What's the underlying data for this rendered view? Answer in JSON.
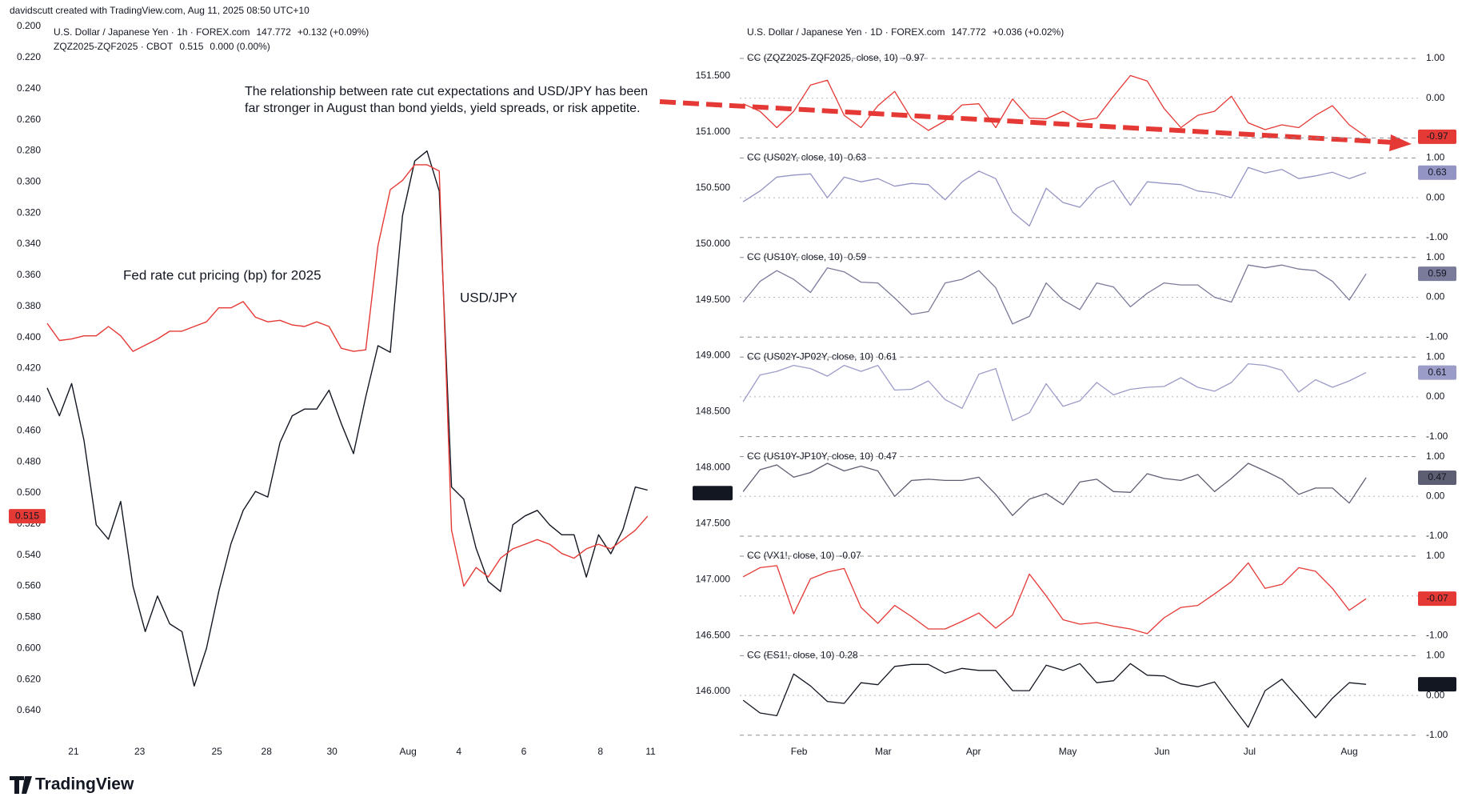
{
  "credit": "davidscutt created with TradingView.com, Aug 11, 2025 08:50 UTC+10",
  "logo": "TradingView",
  "chart_data": [
    {
      "type": "line",
      "header": {
        "symbol": "U.S. Dollar / Japanese Yen · 1h · FOREX.com",
        "change": "+0.132 (+0.09%)",
        "symbol2": "ZQZ2025-ZQF2025 · CBOT",
        "change2": "0.000 (0.00%)"
      },
      "annotation": [
        "The relationship between rate cut expectations and USD/JPY has been",
        "far stronger in August than bond yields, yield spreads, or risk appetite."
      ],
      "xlim": [
        0,
        100
      ],
      "xticks": [
        {
          "value": 4.3,
          "label": "21"
        },
        {
          "value": 15.1,
          "label": "23"
        },
        {
          "value": 27.7,
          "label": "25"
        },
        {
          "value": 35.8,
          "label": "28"
        },
        {
          "value": 46.5,
          "label": "30"
        },
        {
          "value": 58.9,
          "label": "Aug"
        },
        {
          "value": 67.2,
          "label": "4"
        },
        {
          "value": 77.8,
          "label": "6"
        },
        {
          "value": 90.3,
          "label": "8"
        },
        {
          "value": 98.5,
          "label": "11"
        }
      ],
      "ylim": [
        0.64,
        0.2
      ],
      "yticks": [
        {
          "value": 0.2,
          "label": "0.200"
        },
        {
          "value": 0.22,
          "label": "0.220"
        },
        {
          "value": 0.24,
          "label": "0.240"
        },
        {
          "value": 0.26,
          "label": "0.260"
        },
        {
          "value": 0.28,
          "label": "0.280"
        },
        {
          "value": 0.3,
          "label": "0.300"
        },
        {
          "value": 0.32,
          "label": "0.320"
        },
        {
          "value": 0.34,
          "label": "0.340"
        },
        {
          "value": 0.36,
          "label": "0.360"
        },
        {
          "value": 0.38,
          "label": "0.380"
        },
        {
          "value": 0.4,
          "label": "0.400"
        },
        {
          "value": 0.42,
          "label": "0.420"
        },
        {
          "value": 0.44,
          "label": "0.440"
        },
        {
          "value": 0.46,
          "label": "0.460"
        },
        {
          "value": 0.48,
          "label": "0.480"
        },
        {
          "value": 0.5,
          "label": "0.500"
        },
        {
          "value": 0.52,
          "label": "0.520"
        },
        {
          "value": 0.54,
          "label": "0.540"
        },
        {
          "value": 0.56,
          "label": "0.560"
        },
        {
          "value": 0.58,
          "label": "0.580"
        },
        {
          "value": 0.6,
          "label": "0.600"
        },
        {
          "value": 0.62,
          "label": "0.620"
        },
        {
          "value": 0.64,
          "label": "0.640"
        }
      ],
      "y2lim": [
        145.79,
        151.94
      ],
      "x": [
        0,
        2,
        4,
        6,
        8,
        10,
        12,
        14,
        16,
        18,
        20,
        22,
        24,
        26,
        28,
        30,
        32,
        34,
        36,
        38,
        40,
        42,
        44,
        46,
        48,
        50,
        52,
        54,
        56,
        58,
        60,
        62,
        64,
        66,
        68,
        70,
        72,
        74,
        76,
        78,
        80,
        82,
        84,
        86,
        88,
        90,
        92,
        94,
        96,
        98
      ],
      "series": [
        {
          "name": "USD/JPY",
          "color": "#131722",
          "axis": "y2",
          "values": [
            148.69,
            148.44,
            148.73,
            148.22,
            147.46,
            147.33,
            147.67,
            146.91,
            146.5,
            146.82,
            146.57,
            146.5,
            146.01,
            146.35,
            146.86,
            147.29,
            147.59,
            147.76,
            147.71,
            148.2,
            148.44,
            148.5,
            148.5,
            148.67,
            148.37,
            148.1,
            148.61,
            149.07,
            149.01,
            150.24,
            150.73,
            150.82,
            150.46,
            147.8,
            147.69,
            147.25,
            146.95,
            146.86,
            147.46,
            147.54,
            147.59,
            147.46,
            147.37,
            147.37,
            146.99,
            147.37,
            147.2,
            147.42,
            147.8,
            147.772
          ]
        },
        {
          "name": "Fed rate cut pricing (bp) for 2025",
          "color": "#e53935",
          "values": [
            0.391,
            0.402,
            0.401,
            0.399,
            0.399,
            0.393,
            0.399,
            0.409,
            0.405,
            0.401,
            0.396,
            0.396,
            0.393,
            0.39,
            0.381,
            0.381,
            0.377,
            0.387,
            0.39,
            0.389,
            0.392,
            0.393,
            0.39,
            0.393,
            0.407,
            0.409,
            0.408,
            0.341,
            0.305,
            0.299,
            0.289,
            0.289,
            0.293,
            0.524,
            0.56,
            0.548,
            0.554,
            0.542,
            0.536,
            0.533,
            0.53,
            0.533,
            0.539,
            0.542,
            0.536,
            0.533,
            0.536,
            0.53,
            0.524,
            0.515
          ]
        }
      ]
    },
    {
      "type": "line",
      "header": {
        "symbol": "U.S. Dollar / Japanese Yen · 1D · FOREX.com",
        "change": "+0.036 (+0.02%)"
      },
      "ylim": [
        146,
        151.5
      ],
      "yticks": [
        {
          "value": 146,
          "label": "146.000"
        },
        {
          "value": 146.5,
          "label": "146.500"
        },
        {
          "value": 147,
          "label": "147.000"
        },
        {
          "value": 147.5,
          "label": "147.500"
        },
        {
          "value": 148,
          "label": "148.000"
        },
        {
          "value": 148.5,
          "label": "148.500"
        },
        {
          "value": 149,
          "label": "149.000"
        },
        {
          "value": 149.5,
          "label": "149.500"
        },
        {
          "value": 150,
          "label": "150.000"
        },
        {
          "value": 150.5,
          "label": "150.500"
        },
        {
          "value": 151,
          "label": "151.000"
        },
        {
          "value": 151.5,
          "label": "151.500"
        }
      ],
      "xlim": [
        0,
        100
      ],
      "xticks": [
        {
          "value": 8.8,
          "label": "Feb"
        },
        {
          "value": 21.3,
          "label": "Mar"
        },
        {
          "value": 34.7,
          "label": "Apr"
        },
        {
          "value": 48.7,
          "label": "May"
        },
        {
          "value": 62.7,
          "label": "Jun"
        },
        {
          "value": 75.7,
          "label": "Jul"
        },
        {
          "value": 90.5,
          "label": "Aug"
        }
      ],
      "pane_ylim": [
        -1,
        1
      ],
      "pane_yticks": [
        {
          "value": 1,
          "label": "1.00"
        },
        {
          "value": 0,
          "label": "0.00"
        },
        {
          "value": -1,
          "label": "-1.00"
        }
      ],
      "x": [
        0.5,
        3,
        5.5,
        8,
        10.5,
        13,
        15.5,
        18,
        20.5,
        23,
        25.5,
        28,
        30.5,
        33,
        35.5,
        38,
        40.5,
        43,
        45.5,
        48,
        50.5,
        53,
        55.5,
        58,
        60.5,
        63,
        65.5,
        68,
        70.5,
        73,
        75.5,
        78,
        80.5,
        83,
        85.5,
        88,
        90.5,
        93
      ],
      "series": [
        {
          "name": "CC (ZQZ2025-ZQF2025, close, 10)",
          "color": "#e53935",
          "values": [
            -0.14,
            -0.33,
            -0.74,
            -0.33,
            0.33,
            0.45,
            -0.43,
            -0.74,
            -0.19,
            0.17,
            -0.52,
            -0.81,
            -0.57,
            -0.17,
            -0.14,
            -0.74,
            -0.02,
            -0.5,
            -0.52,
            -0.33,
            -0.57,
            -0.5,
            0.05,
            0.57,
            0.43,
            -0.26,
            -0.74,
            -0.43,
            -0.33,
            0.05,
            -0.62,
            -0.79,
            -0.67,
            -0.74,
            -0.43,
            -0.19,
            -0.67,
            -0.97
          ]
        },
        {
          "name": "CC (US02Y, close, 10)",
          "color": "#9494c4",
          "values": [
            -0.1,
            0.17,
            0.52,
            0.57,
            0.6,
            0.0,
            0.52,
            0.4,
            0.48,
            0.29,
            0.36,
            0.33,
            -0.05,
            0.4,
            0.67,
            0.48,
            -0.36,
            -0.71,
            0.24,
            -0.12,
            -0.24,
            0.24,
            0.43,
            -0.19,
            0.4,
            0.36,
            0.33,
            0.17,
            0.12,
            0.0,
            0.76,
            0.62,
            0.71,
            0.48,
            0.55,
            0.64,
            0.48,
            0.63
          ]
        },
        {
          "name": "CC (US10Y, close, 10)",
          "color": "#7a7a9a",
          "values": [
            -0.12,
            0.4,
            0.67,
            0.45,
            0.12,
            0.74,
            0.64,
            0.38,
            0.36,
            -0.02,
            -0.43,
            -0.36,
            0.36,
            0.45,
            0.67,
            0.24,
            -0.67,
            -0.48,
            0.36,
            -0.07,
            -0.31,
            0.36,
            0.26,
            -0.24,
            0.1,
            0.36,
            0.31,
            0.31,
            0.0,
            -0.12,
            0.81,
            0.74,
            0.81,
            0.71,
            0.67,
            0.4,
            -0.07,
            0.59
          ]
        },
        {
          "name": "CC (US02Y-JP02Y, close, 10)",
          "color": "#9c9cc8",
          "values": [
            -0.12,
            0.55,
            0.64,
            0.79,
            0.71,
            0.52,
            0.79,
            0.64,
            0.79,
            0.17,
            0.19,
            0.4,
            -0.07,
            -0.29,
            0.57,
            0.71,
            -0.6,
            -0.4,
            0.33,
            -0.24,
            -0.1,
            0.36,
            0.05,
            0.19,
            0.24,
            0.26,
            0.48,
            0.24,
            0.14,
            0.36,
            0.83,
            0.79,
            0.67,
            0.12,
            0.43,
            0.24,
            0.4,
            0.61
          ]
        },
        {
          "name": "CC (US10Y-JP10Y, close, 10)",
          "color": "#5e5e72",
          "values": [
            0.12,
            0.67,
            0.79,
            0.48,
            0.6,
            0.83,
            0.64,
            0.76,
            0.64,
            0.0,
            0.4,
            0.43,
            0.4,
            0.4,
            0.48,
            0.05,
            -0.48,
            -0.07,
            0.07,
            -0.21,
            0.36,
            0.43,
            0.12,
            0.1,
            0.57,
            0.45,
            0.4,
            0.55,
            0.12,
            0.45,
            0.83,
            0.64,
            0.43,
            0.05,
            0.21,
            0.21,
            -0.17,
            0.47
          ]
        },
        {
          "name": "CC (VX1!, close, 10)",
          "color": "#e53935",
          "values": [
            0.48,
            0.71,
            0.76,
            -0.45,
            0.43,
            0.6,
            0.69,
            -0.29,
            -0.69,
            -0.24,
            -0.52,
            -0.83,
            -0.83,
            -0.64,
            -0.43,
            -0.81,
            -0.48,
            0.55,
            0.0,
            -0.6,
            -0.71,
            -0.67,
            -0.76,
            -0.83,
            -0.95,
            -0.55,
            -0.29,
            -0.24,
            0.05,
            0.36,
            0.83,
            0.19,
            0.29,
            0.71,
            0.62,
            0.19,
            -0.36,
            -0.07
          ]
        },
        {
          "name": "CC (ES1!, close, 10)",
          "color": "#131722",
          "values": [
            -0.12,
            -0.44,
            -0.51,
            0.54,
            0.24,
            -0.15,
            -0.2,
            0.32,
            0.27,
            0.73,
            0.78,
            0.78,
            0.56,
            0.68,
            0.63,
            0.63,
            0.12,
            0.12,
            0.76,
            0.63,
            0.8,
            0.32,
            0.37,
            0.8,
            0.51,
            0.49,
            0.29,
            0.22,
            0.34,
            -0.24,
            -0.8,
            0.12,
            0.41,
            -0.07,
            -0.56,
            -0.07,
            0.32,
            0.28
          ]
        }
      ]
    }
  ]
}
